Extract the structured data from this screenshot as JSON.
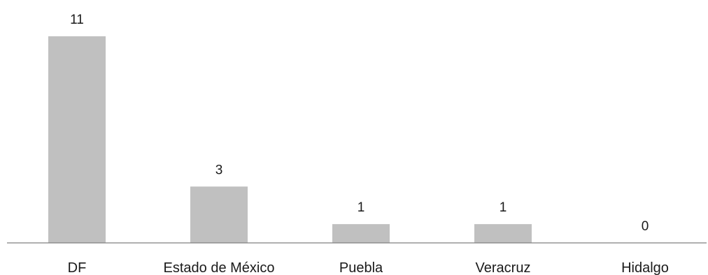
{
  "chart_data": {
    "type": "bar",
    "categories": [
      "DF",
      "Estado de México",
      "Puebla",
      "Veracruz",
      "Hidalgo"
    ],
    "values": [
      11,
      3,
      1,
      1,
      0
    ],
    "data_labels": [
      "11",
      "3",
      "1",
      "1",
      "0"
    ],
    "ylim": [
      0,
      11
    ],
    "grid": false,
    "legend": "none",
    "colors": {
      "bar": "#c0c0c0",
      "axis": "#808080",
      "text": "#1a1a1a"
    }
  }
}
